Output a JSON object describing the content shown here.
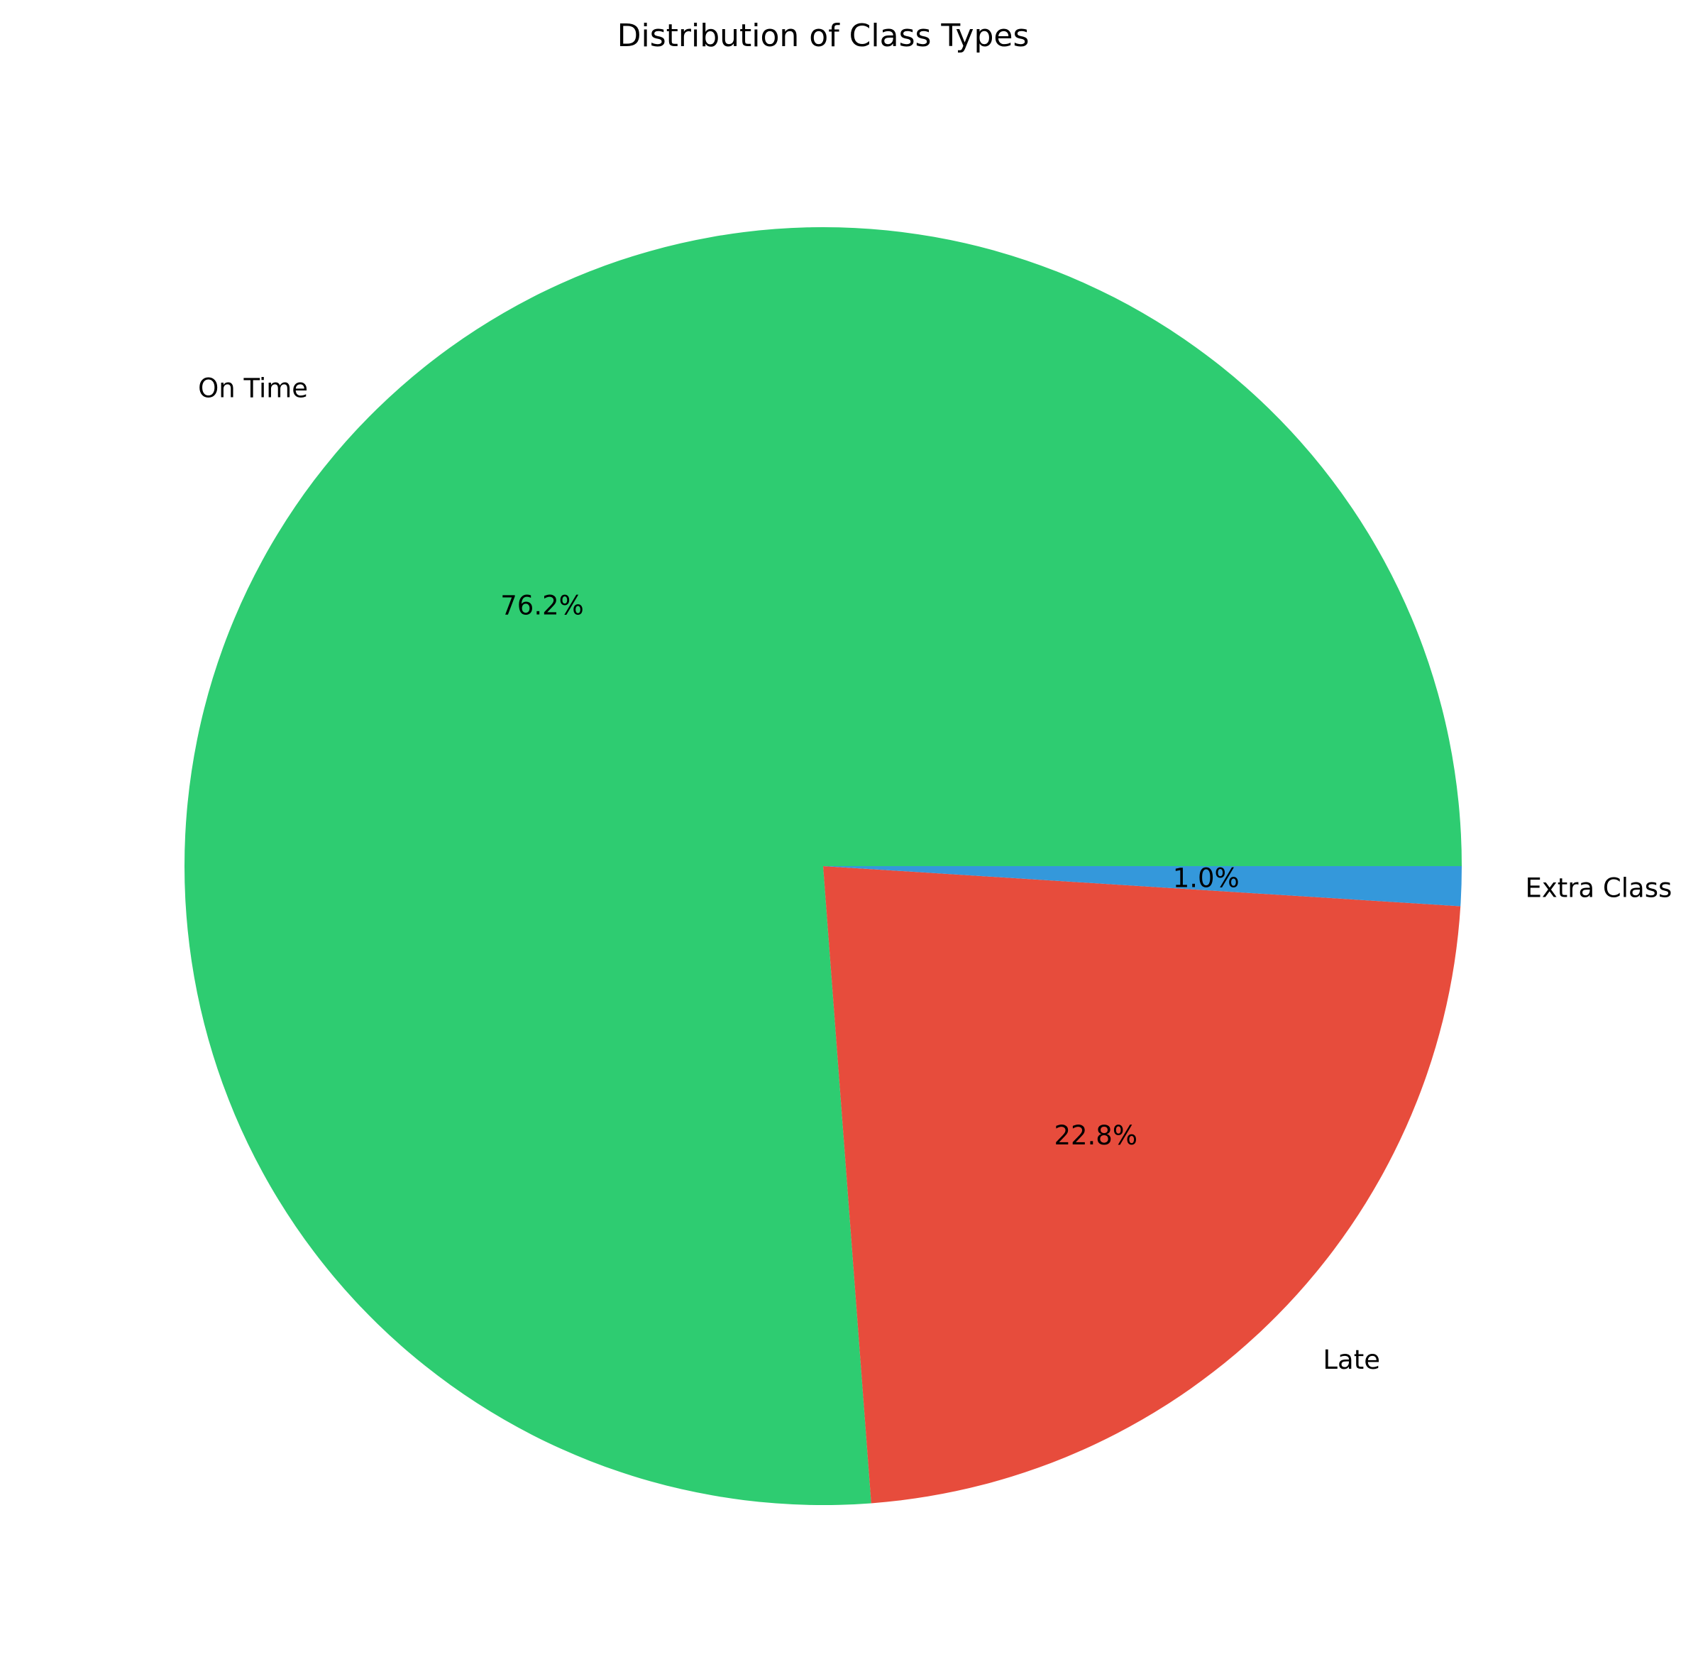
{
  "chart_data": {
    "type": "pie",
    "title": "Distribution of Class Types",
    "categories": [
      "On Time",
      "Late",
      "Extra Class"
    ],
    "values": [
      76.2,
      22.8,
      1.0
    ],
    "percent_labels": [
      "76.2%",
      "22.8%",
      "1.0%"
    ],
    "colors": [
      "#2ecc71",
      "#e74c3c",
      "#3498db"
    ],
    "start_angle_deg": 0,
    "direction": "counterclockwise",
    "legend": "none"
  }
}
